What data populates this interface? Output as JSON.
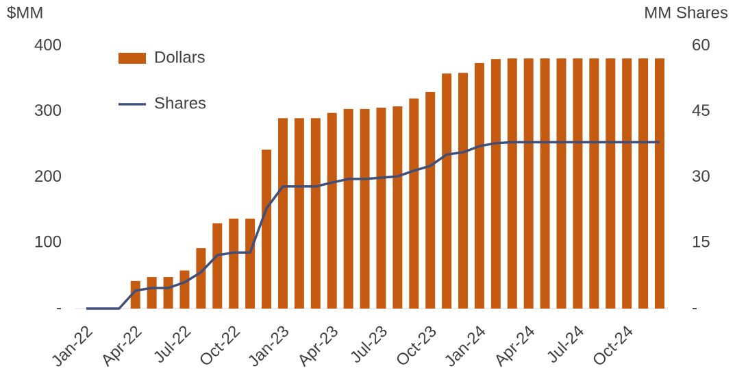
{
  "chart_data": {
    "type": "bar_line",
    "y_label": "$MM",
    "y2_label": "MM Shares",
    "categories": [
      "Jan-22",
      null,
      null,
      "Apr-22",
      null,
      null,
      "Jul-22",
      null,
      null,
      "Oct-22",
      null,
      null,
      "Jan-23",
      null,
      null,
      "Apr-23",
      null,
      null,
      "Jul-23",
      null,
      null,
      "Oct-23",
      null,
      null,
      "Jan-24",
      null,
      null,
      "Apr-24",
      null,
      null,
      "Jul-24",
      null,
      null,
      "Oct-24",
      null,
      null
    ],
    "series": [
      {
        "name": "Dollars",
        "color": "#c55a11",
        "type": "bar",
        "values": [
          0,
          0,
          0,
          42,
          48,
          48,
          58,
          92,
          130,
          137,
          137,
          242,
          290,
          290,
          290,
          298,
          304,
          304,
          306,
          308,
          320,
          330,
          358,
          359,
          374,
          380,
          381,
          381,
          381,
          381,
          381,
          381,
          381,
          381,
          381,
          381
        ]
      },
      {
        "name": "Shares",
        "color": "#3f4f78",
        "type": "line",
        "axis": "y2",
        "values": [
          0,
          0,
          0,
          4.1,
          4.7,
          4.7,
          6.0,
          8.3,
          12.2,
          12.8,
          12.8,
          22.9,
          27.9,
          27.9,
          27.9,
          28.8,
          29.6,
          29.6,
          29.9,
          30.2,
          31.5,
          32.6,
          35.2,
          35.7,
          37.1,
          37.8,
          38.0,
          38.0,
          38.0,
          38.0,
          38.0,
          38.0,
          38.0,
          38.0,
          38.0,
          38.0
        ]
      }
    ],
    "ylim": [
      0,
      400
    ],
    "yticks": [
      {
        "value": 0,
        "label": "-"
      },
      100,
      200,
      300,
      400
    ],
    "y2lim": [
      0,
      60
    ],
    "y2ticks": [
      {
        "value": 0,
        "label": "-"
      },
      15,
      30,
      45,
      60
    ],
    "legend": "top-left"
  }
}
